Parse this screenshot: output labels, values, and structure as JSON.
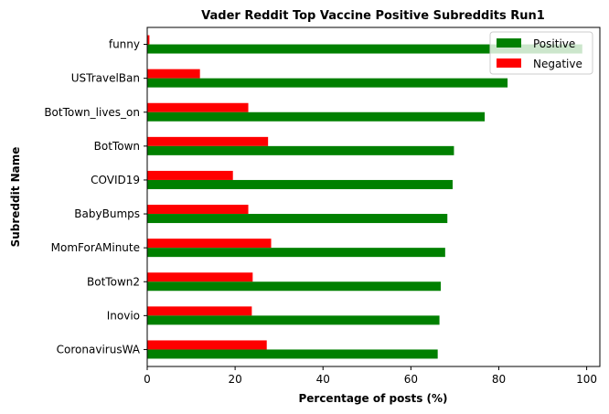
{
  "chart_data": {
    "type": "bar",
    "orientation": "horizontal",
    "title": "Vader Reddit Top Vaccine Positive Subreddits Run1",
    "xlabel": "Percentage of posts (%)",
    "ylabel": "Subreddit Name",
    "xlim": [
      0,
      103
    ],
    "xticks": [
      0,
      20,
      40,
      60,
      80,
      100
    ],
    "grid": false,
    "legend": "top-right",
    "categories": [
      "funny",
      "USTravelBan",
      "BotTown_lives_on",
      "BotTown",
      "COVID19",
      "BabyBumps",
      "MomForAMinute",
      "BotTown2",
      "Inovio",
      "CoronavirusWA"
    ],
    "series": [
      {
        "name": "Positive",
        "color": "#008000",
        "values": [
          99.0,
          82.0,
          76.8,
          69.8,
          69.5,
          68.3,
          67.8,
          66.8,
          66.5,
          66.1
        ]
      },
      {
        "name": "Negative",
        "color": "#ff0000",
        "values": [
          0.5,
          12.0,
          23.0,
          27.5,
          19.5,
          23.0,
          28.2,
          24.0,
          23.8,
          27.2
        ]
      }
    ]
  }
}
